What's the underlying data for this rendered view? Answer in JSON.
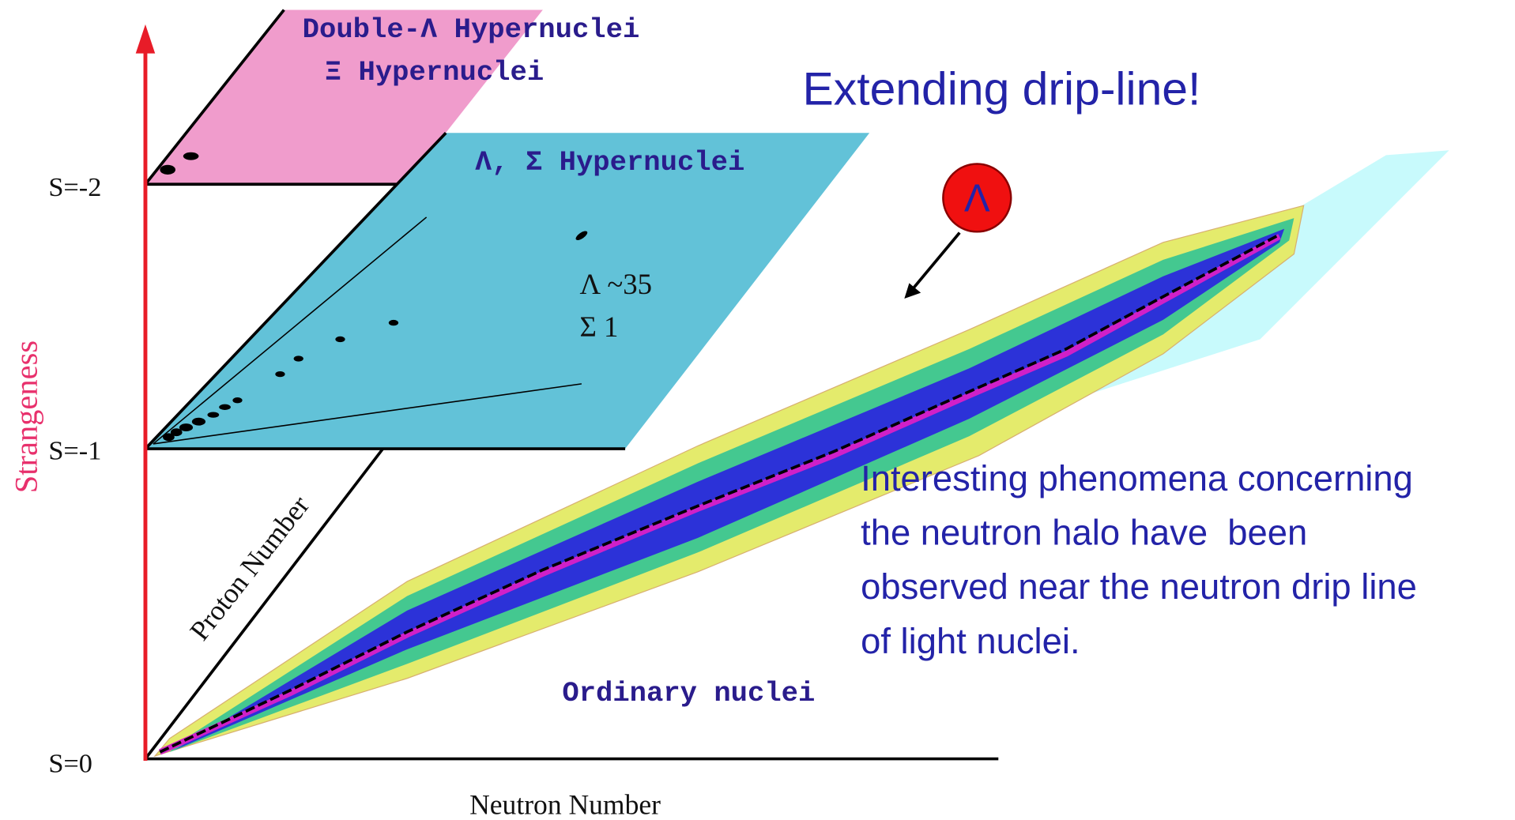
{
  "title": "Extending drip-line!",
  "axis": {
    "label": "Strangeness",
    "levels": [
      "S=-2",
      "S=-1",
      "S=0"
    ],
    "proton_label": "Proton Number",
    "neutron_label": "Neutron Number"
  },
  "planes": [
    {
      "labels": [
        "Double-Λ Hypernuclei",
        "Ξ Hypernuclei"
      ]
    },
    {
      "labels": [
        "Λ, Σ Hypernuclei"
      ],
      "counts": [
        "Λ ~35",
        "Σ 1"
      ]
    },
    {
      "labels": [
        "Ordinary nuclei"
      ]
    }
  ],
  "particle": "Λ",
  "description": [
    "Interesting phenomena concerning",
    "the neutron halo have  been",
    "observed near the neutron drip line",
    "of light nuclei."
  ]
}
